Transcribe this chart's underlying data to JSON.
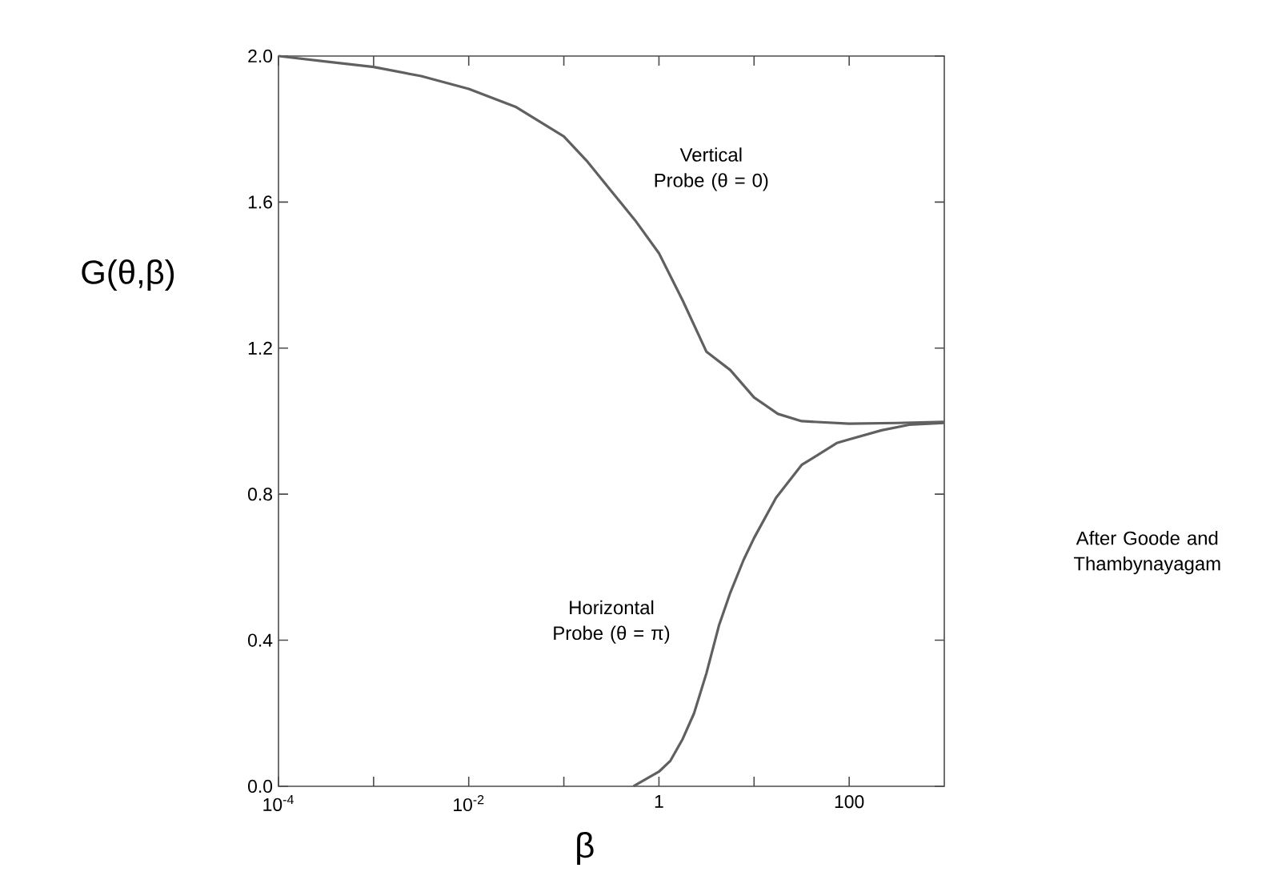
{
  "chart_data": {
    "type": "line",
    "xlabel": "β",
    "ylabel": "G(θ,β)",
    "annotations": [
      "After Goode and Thambynayagam"
    ],
    "log": "x",
    "xlim": [
      0.0001,
      1000
    ],
    "ylim": [
      0,
      2
    ],
    "xticks": [
      {
        "value": 0.0001,
        "label": "10$^{-4}$"
      },
      {
        "value": 0.001,
        "label": null
      },
      {
        "value": 0.01,
        "label": "10$^{-2}$"
      },
      {
        "value": 0.1,
        "label": null
      },
      {
        "value": 1,
        "label": "1"
      },
      {
        "value": 10,
        "label": null
      },
      {
        "value": 100,
        "label": "100"
      }
    ],
    "yticks": [
      {
        "value": 0,
        "label": "0.0"
      },
      {
        "value": 0.4,
        "label": "0.4"
      },
      {
        "value": 0.8,
        "label": "0.8"
      },
      {
        "value": 1.2,
        "label": "1.2"
      },
      {
        "value": 1.6,
        "label": "1.6"
      },
      {
        "value": 2,
        "label": "2.0"
      }
    ],
    "series": [
      {
        "name": "Vertical Probe (θ = 0)",
        "color": "#606060",
        "x": [
          0.0001,
          0.000316,
          0.001,
          0.00316,
          0.01,
          0.0316,
          0.1,
          0.178,
          0.316,
          0.562,
          1,
          1.78,
          3.16,
          5.62,
          10,
          17.8,
          31.6,
          100,
          316,
          1000
        ],
        "values": [
          2.0,
          1.985,
          1.97,
          1.945,
          1.91,
          1.86,
          1.78,
          1.71,
          1.63,
          1.55,
          1.46,
          1.33,
          1.19,
          1.14,
          1.065,
          1.02,
          1.0,
          0.993,
          0.995,
          0.998
        ]
      },
      {
        "name": "Horizontal Probe (θ = π)",
        "color": "#606060",
        "x": [
          0.54,
          1,
          1.32,
          1.78,
          2.34,
          3.16,
          4.27,
          5.62,
          7.76,
          10,
          17,
          31.6,
          74,
          100,
          219,
          427,
          1000
        ],
        "values": [
          0,
          0.04,
          0.07,
          0.13,
          0.2,
          0.31,
          0.44,
          0.53,
          0.62,
          0.68,
          0.79,
          0.88,
          0.94,
          0.95,
          0.975,
          0.99,
          0.995
        ]
      }
    ]
  }
}
